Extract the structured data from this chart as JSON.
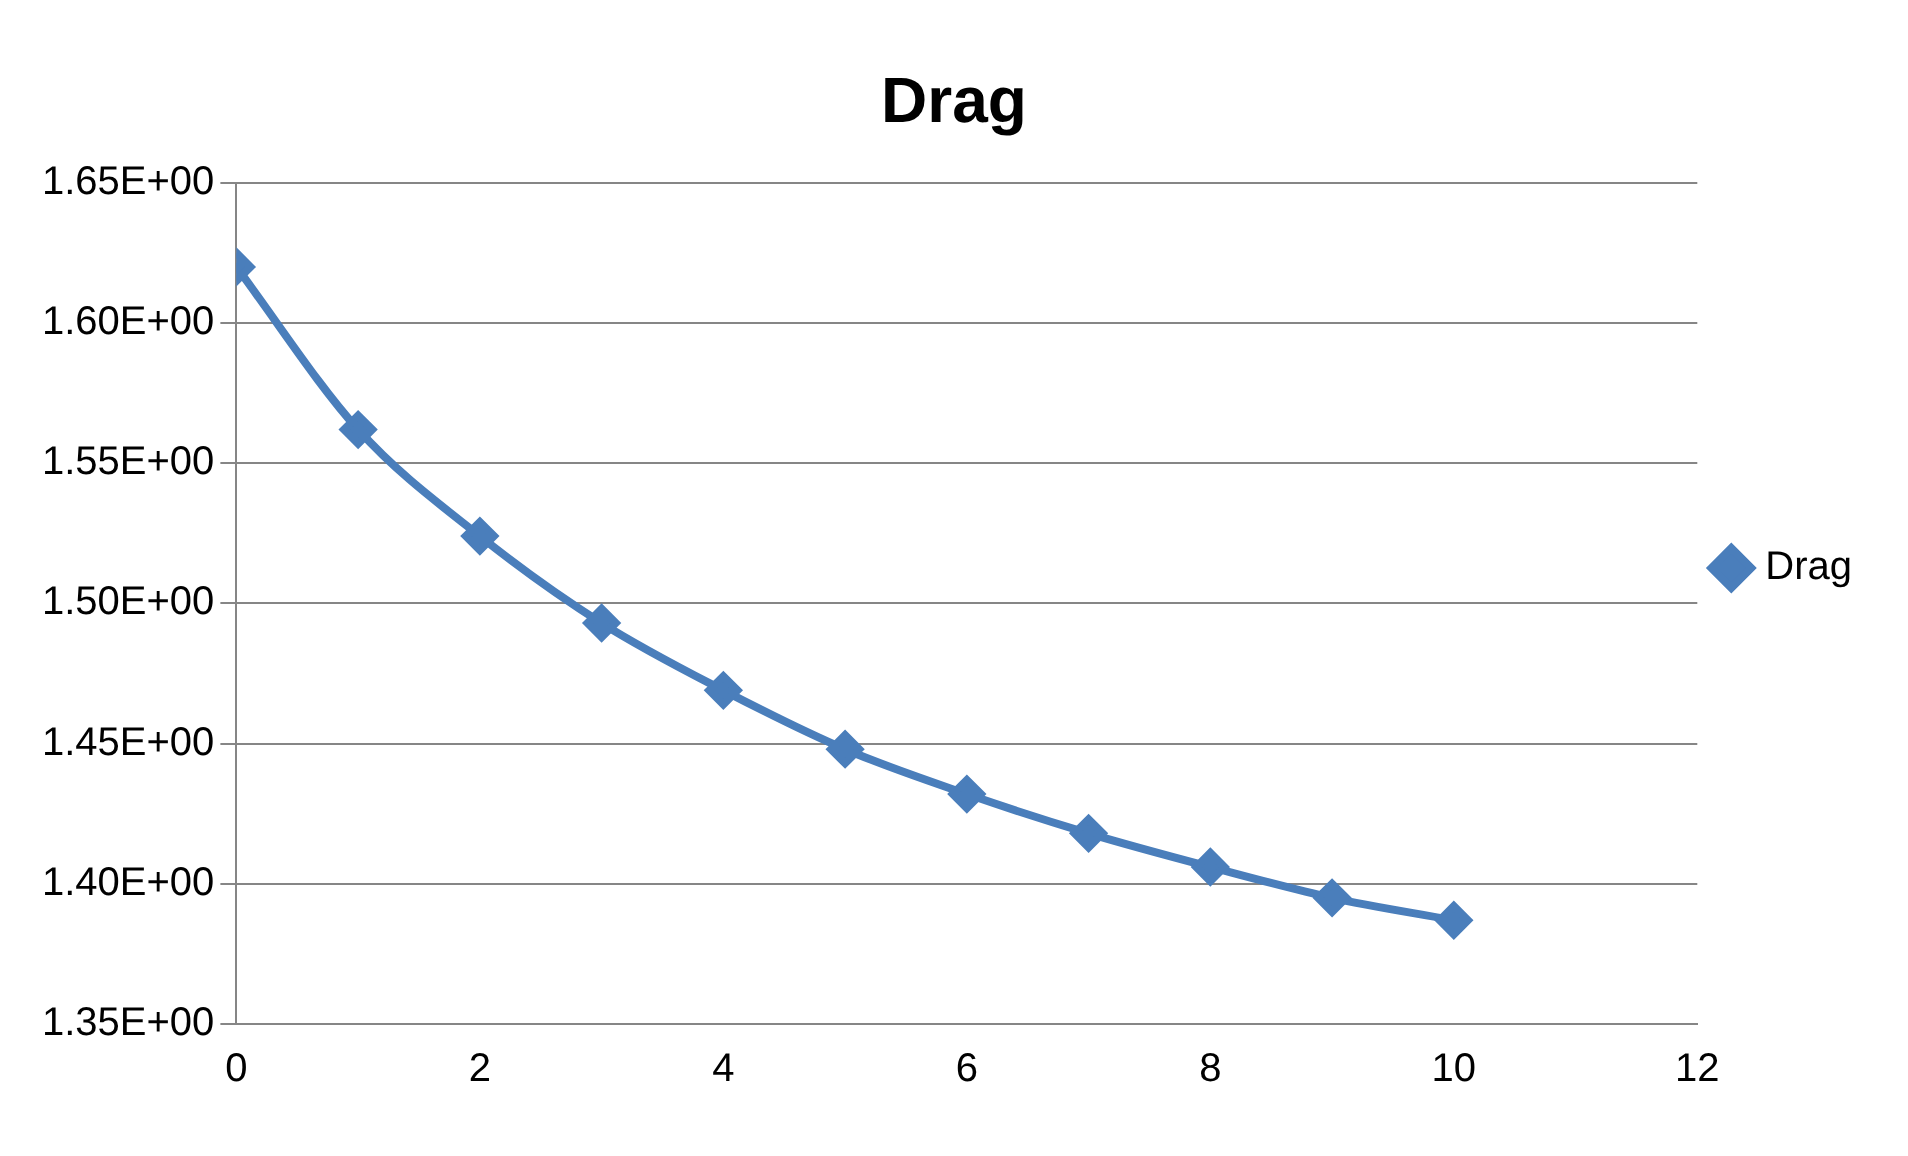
{
  "chart_data": {
    "type": "line",
    "title": "Drag",
    "x": [
      0,
      1,
      2,
      3,
      4,
      5,
      6,
      7,
      8,
      9,
      10
    ],
    "series": [
      {
        "name": "Drag",
        "color": "#4a7ebb",
        "values": [
          1.62,
          1.562,
          1.524,
          1.493,
          1.469,
          1.448,
          1.432,
          1.418,
          1.406,
          1.395,
          1.387
        ]
      }
    ],
    "xlim": [
      0,
      12
    ],
    "xticks": [
      0,
      2,
      4,
      6,
      8,
      10,
      12
    ],
    "ylim": [
      1.35,
      1.65
    ],
    "yticks": [
      {
        "value": 1.35,
        "label": "1.35E+00"
      },
      {
        "value": 1.4,
        "label": "1.40E+00"
      },
      {
        "value": 1.45,
        "label": "1.45E+00"
      },
      {
        "value": 1.5,
        "label": "1.50E+00"
      },
      {
        "value": 1.55,
        "label": "1.55E+00"
      },
      {
        "value": 1.6,
        "label": "1.60E+00"
      },
      {
        "value": 1.65,
        "label": "1.65E+00"
      }
    ],
    "grid": "y",
    "legend": "right",
    "marker": "diamond",
    "line_style": "solid"
  }
}
